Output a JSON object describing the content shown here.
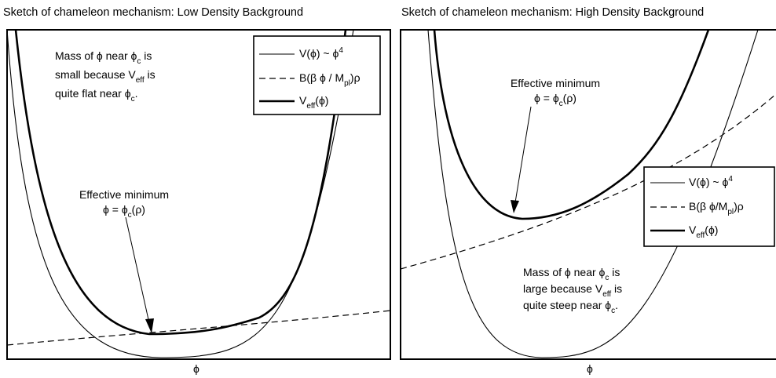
{
  "panels": [
    {
      "title": "Sketch of chameleon mechanism: Low Density Background",
      "x_label": "ϕ",
      "legend": [
        {
          "base": "V(ϕ) ~ ϕ",
          "sup": "4",
          "style": "thin-solid"
        },
        {
          "base": "B(β ϕ / M",
          "sub": "pl",
          "tail": ")ρ",
          "style": "dashed"
        },
        {
          "base": "V",
          "sub": "eff",
          "tail": "(ϕ)",
          "style": "thick-solid"
        }
      ],
      "annotations": {
        "mass_lines": [
          [
            {
              "t": "Mass of ϕ near ϕ"
            },
            {
              "t": "c",
              "sub": true
            },
            {
              "t": " is"
            }
          ],
          [
            {
              "t": "small because V"
            },
            {
              "t": "eff",
              "sub": true
            },
            {
              "t": " is"
            }
          ],
          [
            {
              "t": "quite flat near ϕ"
            },
            {
              "t": "c",
              "sub": true
            },
            {
              "t": "."
            }
          ]
        ],
        "min_lines": [
          [
            {
              "t": "Effective minimum"
            }
          ],
          [
            {
              "t": "ϕ = ϕ"
            },
            {
              "t": "c",
              "sub": true
            },
            {
              "t": "(ρ)"
            }
          ]
        ]
      }
    },
    {
      "title": "Sketch of chameleon mechanism: High Density Background",
      "x_label": "ϕ",
      "legend": [
        {
          "base": "V(ϕ) ~ ϕ",
          "sup": "4",
          "style": "thin-solid"
        },
        {
          "base": "B(β ϕ/M",
          "sub": "pl",
          "tail": ")ρ",
          "style": "dashed"
        },
        {
          "base": "V",
          "sub": "eff",
          "tail": "(ϕ)",
          "style": "thick-solid"
        }
      ],
      "annotations": {
        "min_lines": [
          [
            {
              "t": "Effective minimum"
            }
          ],
          [
            {
              "t": "ϕ = ϕ"
            },
            {
              "t": "c",
              "sub": true
            },
            {
              "t": "(ρ)"
            }
          ]
        ],
        "mass_lines": [
          [
            {
              "t": "Mass of ϕ near ϕ"
            },
            {
              "t": "c",
              "sub": true
            },
            {
              "t": " is"
            }
          ],
          [
            {
              "t": "large because V"
            },
            {
              "t": "eff",
              "sub": true
            },
            {
              "t": " is"
            }
          ],
          [
            {
              "t": "quite steep near ϕ"
            },
            {
              "t": "c",
              "sub": true
            },
            {
              "t": "."
            }
          ]
        ]
      }
    }
  ]
}
